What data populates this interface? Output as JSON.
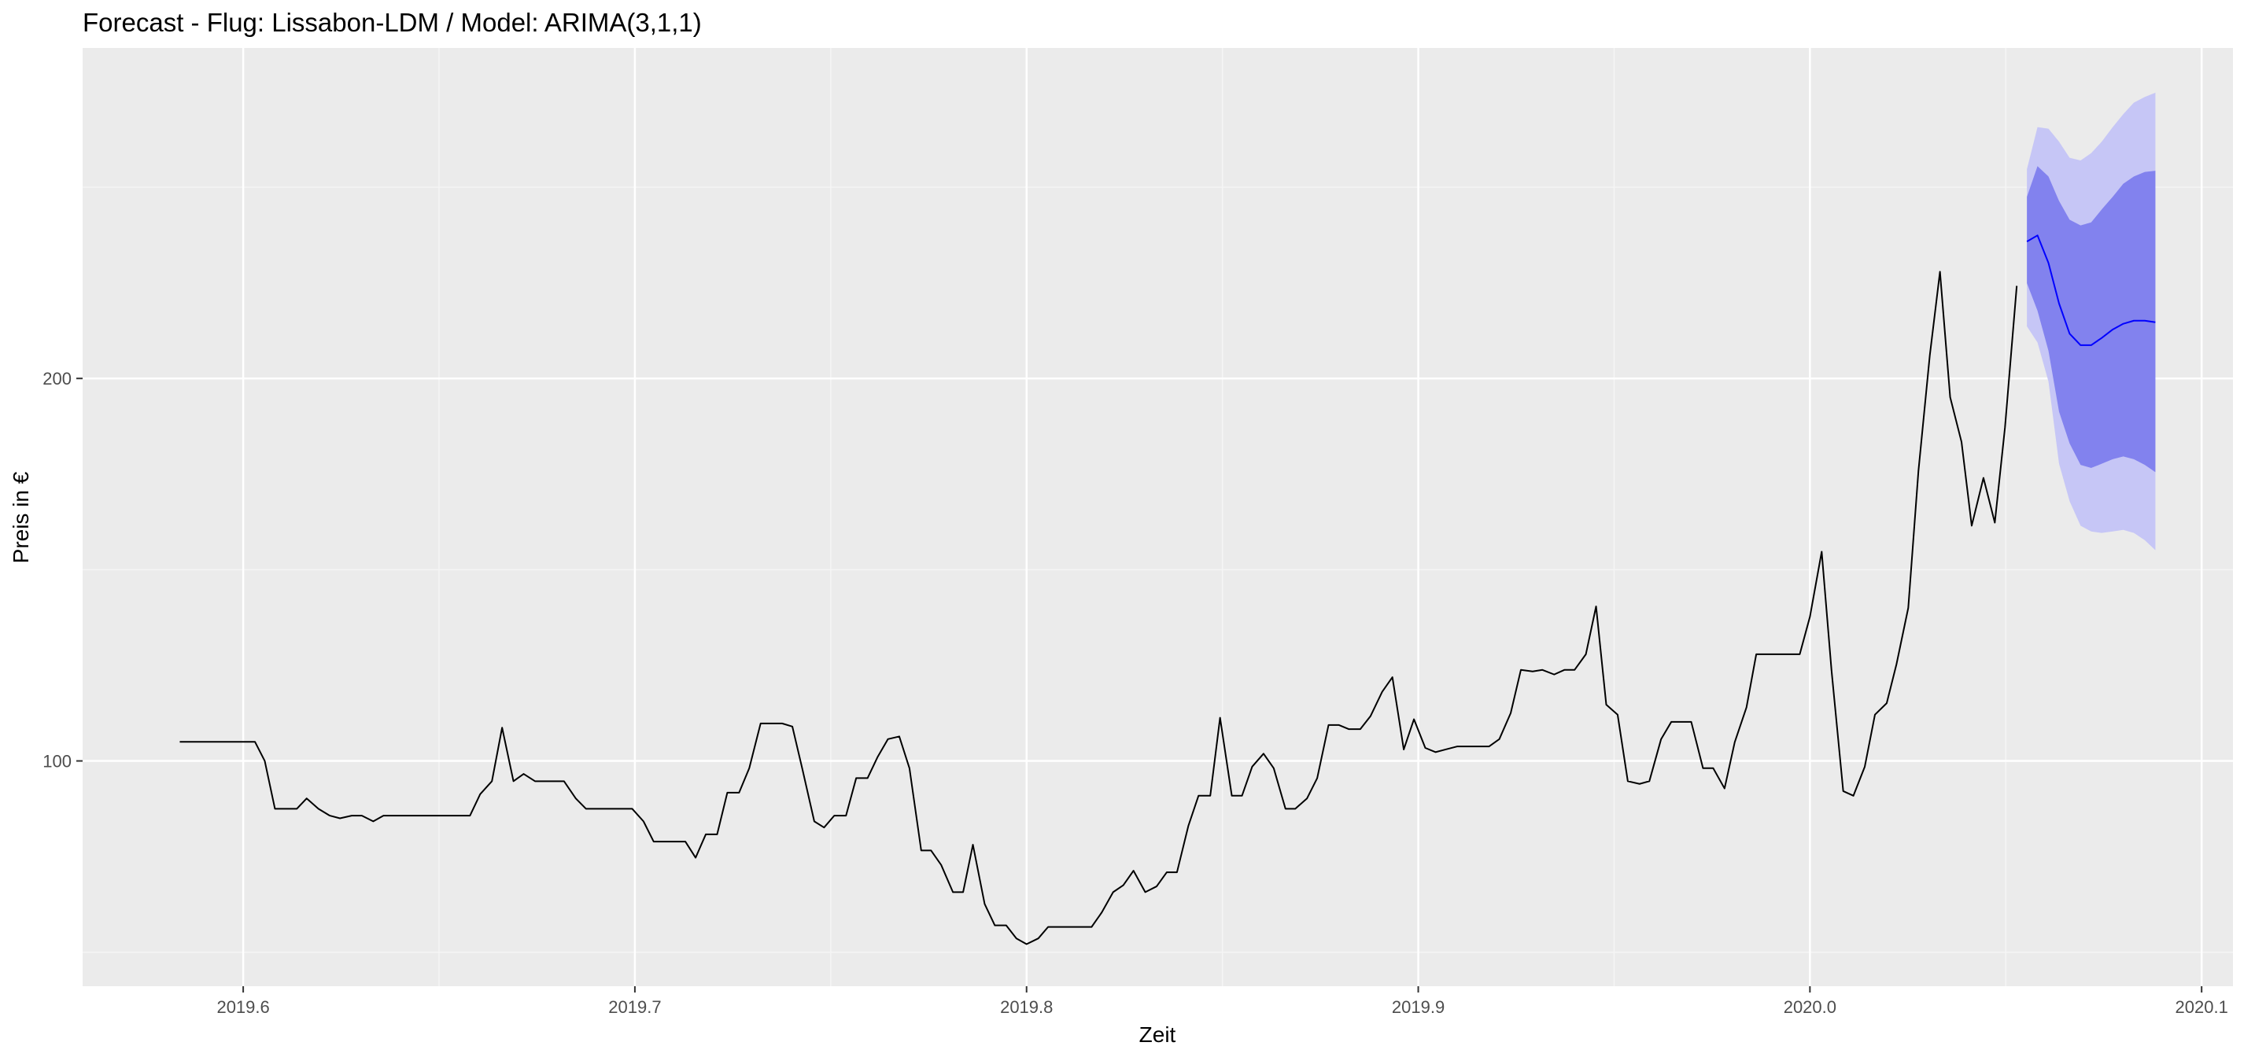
{
  "chart_data": {
    "type": "line",
    "title": "Forecast - Flug: Lissabon-LDM / Model: ARIMA(3,1,1)",
    "x_label": "Zeit",
    "y_label": "Preis in €",
    "xlim": [
      2019.559,
      2020.108
    ],
    "ylim": [
      41.1,
      286.4
    ],
    "xticks": [
      2019.6,
      2019.7,
      2019.8,
      2019.9,
      {
        "value": 2020,
        "label": "2020.0"
      },
      2020.1
    ],
    "yticks": [
      100,
      200
    ],
    "grid": true,
    "series": [
      {
        "color": "#000000",
        "x": [
          2019.5838,
          2019.603,
          2019.6055,
          2019.6081,
          2019.6137,
          2019.6162,
          2019.6192,
          2019.6221,
          2019.6247,
          2019.6277,
          2019.6303,
          2019.6332,
          2019.6358,
          2019.6579,
          2019.6605,
          2019.6635,
          2019.6661,
          2019.669,
          2019.6716,
          2019.6745,
          2019.6819,
          2019.6849,
          2019.6875,
          2019.6993,
          2019.7022,
          2019.7048,
          2019.7129,
          2019.7155,
          2019.7181,
          2019.721,
          2019.7236,
          2019.7266,
          2019.7292,
          2019.7321,
          2019.7376,
          2019.7402,
          2019.7428,
          2019.7458,
          2019.7483,
          2019.7509,
          2019.7539,
          2019.7565,
          2019.7594,
          2019.762,
          2019.7646,
          2019.7675,
          2019.7701,
          2019.7731,
          2019.7756,
          2019.7782,
          2019.7812,
          2019.7838,
          2019.7863,
          2019.7893,
          2019.7919,
          2019.7948,
          2019.7974,
          2019.8,
          2019.803,
          2019.8055,
          2019.8166,
          2019.8192,
          2019.8221,
          2019.8247,
          2019.8273,
          2019.8303,
          2019.8332,
          2019.8358,
          2019.8384,
          2019.8413,
          2019.8439,
          2019.8469,
          2019.8494,
          2019.8524,
          2019.855,
          2019.8576,
          2019.8605,
          2019.8631,
          2019.8661,
          2019.8686,
          2019.8716,
          2019.8742,
          2019.8771,
          2019.8797,
          2019.8823,
          2019.8852,
          2019.8878,
          2019.8908,
          2019.8934,
          2019.8963,
          2019.8989,
          2019.9018,
          2019.9044,
          2019.907,
          2019.91,
          2019.9181,
          2019.9207,
          2019.9236,
          2019.9262,
          2019.9292,
          2019.9317,
          2019.9347,
          2019.9373,
          2019.9399,
          2019.9428,
          2019.9454,
          2019.948,
          2019.9509,
          2019.9535,
          2019.9565,
          2019.959,
          2019.962,
          2019.9646,
          2019.9697,
          2019.9727,
          2019.9753,
          2019.9782,
          2019.9808,
          2019.9838,
          2019.9863,
          2019.9974,
          2020.0,
          2020.003,
          2020.0055,
          2020.0085,
          2020.0111,
          2020.014,
          2020.0166,
          2020.0196,
          2020.0221,
          2020.0251,
          2020.0277,
          2020.0306,
          2020.0332,
          2020.0358,
          2020.0387,
          2020.0413,
          2020.0443,
          2020.0472,
          2020.0498,
          2020.0528
        ],
        "values": [
          105,
          105,
          100,
          87.5,
          87.5,
          90.2,
          87.5,
          85.7,
          85,
          85.7,
          85.7,
          84.2,
          85.7,
          85.7,
          91.3,
          94.7,
          108.7,
          94.7,
          96.6,
          94.7,
          94.7,
          90.2,
          87.5,
          87.5,
          84.2,
          78.9,
          78.9,
          74.7,
          80.8,
          80.8,
          91.7,
          91.7,
          98.1,
          109.8,
          109.8,
          109,
          97.7,
          84.2,
          82.6,
          85.7,
          85.7,
          95.5,
          95.5,
          101.1,
          105.7,
          106.4,
          98.1,
          76.6,
          76.6,
          72.8,
          65.7,
          65.7,
          78.1,
          62.6,
          57,
          57,
          53.6,
          52.1,
          53.6,
          56.6,
          56.6,
          60.4,
          65.7,
          67.5,
          71.3,
          65.7,
          67.2,
          70.9,
          70.9,
          83,
          90.9,
          90.9,
          111.3,
          90.9,
          90.9,
          98.5,
          101.9,
          98.1,
          87.5,
          87.5,
          90.2,
          95.5,
          109.4,
          109.4,
          108.3,
          108.3,
          111.7,
          118.1,
          121.9,
          103,
          110.9,
          103.4,
          102.3,
          103,
          103.8,
          103.8,
          105.7,
          112.5,
          123.8,
          123.4,
          123.8,
          122.6,
          123.8,
          123.8,
          127.9,
          140.4,
          114.7,
          112.1,
          94.7,
          94,
          94.7,
          105.7,
          110.2,
          110.2,
          98.1,
          98.1,
          92.8,
          104.9,
          114,
          127.9,
          127.9,
          137.7,
          154.7,
          123.8,
          92.1,
          90.9,
          98.5,
          112.1,
          115.1,
          125.3,
          140,
          175.8,
          206,
          227.9,
          195.1,
          183.4,
          161.5,
          174,
          162.3,
          187.2,
          224.2
        ]
      },
      {
        "color": "#0000ff",
        "x": [
          2020.0554,
          2020.0581,
          2020.0609,
          2020.0636,
          2020.0663,
          2020.0691,
          2020.0718,
          2020.0745,
          2020.0773,
          2020.08,
          2020.0827,
          2020.0855,
          2020.0882
        ],
        "values": [
          235.8,
          237.4,
          230.2,
          219.6,
          211.7,
          208.7,
          208.7,
          210.6,
          212.8,
          214.3,
          215.1,
          215.1,
          214.7
        ],
        "bands": [
          {
            "color": "#c6c6f6",
            "lower": [
              213.6,
              209.4,
              199.2,
              177.7,
              167.9,
              161.5,
              160,
              159.6,
              160,
              160.4,
              159.6,
              157.7,
              155.1
            ],
            "upper": [
              254.7,
              265.7,
              265.3,
              261.9,
              257.7,
              257,
              258.9,
              261.9,
              265.7,
              269.1,
              272.1,
              273.6,
              274.7
            ]
          },
          {
            "color": "#8282ee",
            "lower": [
              224.9,
              217.7,
              207.2,
              191.3,
              183,
              177.4,
              176.6,
              177.7,
              178.9,
              179.6,
              178.9,
              177.4,
              175.5
            ],
            "upper": [
              247.5,
              255.5,
              252.8,
              246.4,
              241.5,
              240,
              240.8,
              244.2,
              247.5,
              250.9,
              252.8,
              254,
              254.3
            ]
          }
        ]
      }
    ]
  }
}
